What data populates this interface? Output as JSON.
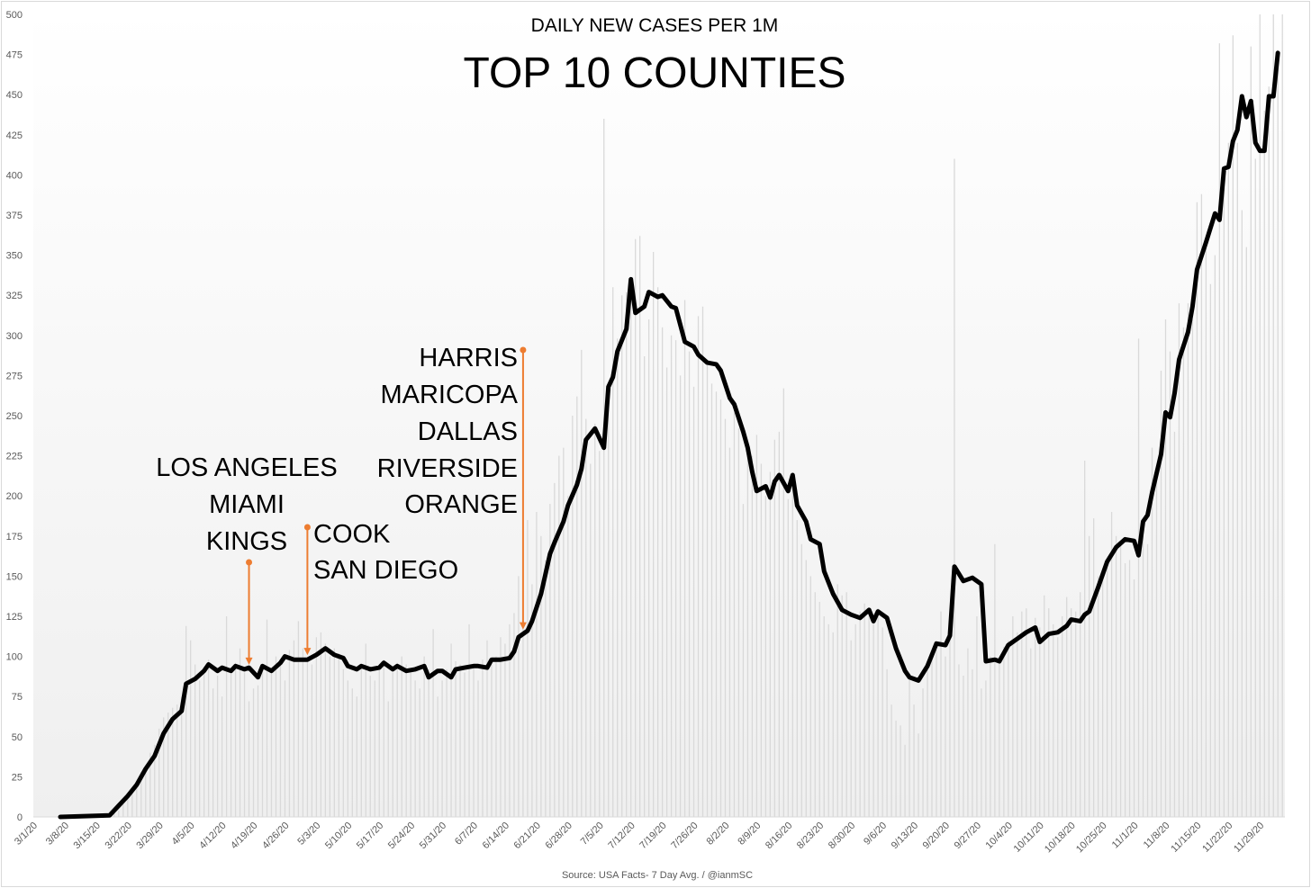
{
  "chart_data": {
    "type": "bar+line",
    "subtitle": "DAILY NEW CASES PER 1M",
    "title": "TOP 10 COUNTIES",
    "source": "Source: USA Facts- 7 Day Avg. / @ianmSC",
    "xlabel": "",
    "ylabel": "",
    "x_origin": "3/1/20",
    "x_units": "days since 3/1/20",
    "xlim_days": [
      0,
      279
    ],
    "ylim": [
      0,
      500
    ],
    "y_ticks": [
      0,
      25,
      50,
      75,
      100,
      125,
      150,
      175,
      200,
      225,
      250,
      275,
      300,
      325,
      350,
      375,
      400,
      425,
      450,
      475,
      500
    ],
    "x_tick_labels": [
      "3/1/20",
      "3/8/20",
      "3/15/20",
      "3/22/20",
      "3/29/20",
      "4/5/20",
      "4/12/20",
      "4/19/20",
      "4/26/20",
      "5/3/20",
      "5/10/20",
      "5/17/20",
      "5/24/20",
      "5/31/20",
      "6/7/20",
      "6/14/20",
      "6/21/20",
      "6/28/20",
      "7/5/20",
      "7/12/20",
      "7/19/20",
      "7/26/20",
      "8/2/20",
      "8/9/20",
      "8/16/20",
      "8/23/20",
      "8/30/20",
      "9/6/20",
      "9/13/20",
      "9/20/20",
      "9/27/20",
      "10/4/20",
      "10/11/20",
      "10/18/20",
      "10/25/20",
      "11/1/20",
      "11/8/20",
      "11/15/20",
      "11/22/20",
      "11/29/20"
    ],
    "grid": false,
    "legend": "none",
    "bars": {
      "name": "Daily new cases per 1M",
      "color": "#d9d9d9",
      "start_day": 5,
      "values": [
        0,
        0,
        0,
        0,
        0,
        1,
        1,
        1,
        1,
        1,
        2,
        2,
        3,
        4,
        8,
        12,
        15,
        20,
        28,
        30,
        40,
        45,
        55,
        62,
        65,
        68,
        70,
        75,
        119,
        110,
        95,
        85,
        92,
        98,
        80,
        88,
        75,
        125,
        92,
        96,
        105,
        90,
        72,
        80,
        82,
        95,
        123,
        90,
        100,
        98,
        85,
        104,
        110,
        122,
        105,
        98,
        95,
        112,
        115,
        108,
        100,
        105,
        102,
        92,
        85,
        80,
        75,
        95,
        108,
        88,
        85,
        92,
        98,
        72,
        90,
        96,
        100,
        95,
        90,
        85,
        80,
        100,
        92,
        117,
        75,
        85,
        92,
        108,
        97,
        95,
        90,
        120,
        94,
        85,
        98,
        110,
        95,
        100,
        112,
        108,
        120,
        127,
        150,
        168,
        185,
        145,
        190,
        175,
        160,
        195,
        208,
        225,
        230,
        200,
        250,
        262,
        291,
        248,
        220,
        245,
        228,
        435,
        262,
        330,
        298,
        325,
        327,
        335,
        360,
        362,
        287,
        310,
        352,
        330,
        305,
        280,
        300,
        297,
        275,
        322,
        290,
        268,
        312,
        318,
        282,
        270,
        265,
        260,
        248,
        230,
        252,
        242,
        195,
        234,
        225,
        238,
        220,
        200,
        215,
        235,
        240,
        267,
        198,
        205,
        185,
        170,
        160,
        150,
        140,
        134,
        125,
        120,
        115,
        145,
        138,
        140,
        110,
        120,
        128,
        133,
        130,
        126,
        130,
        118,
        92,
        70,
        60,
        57,
        45,
        88,
        70,
        52,
        80,
        92,
        100,
        104,
        128,
        100,
        120,
        410,
        95,
        88,
        105,
        92,
        125,
        80,
        85,
        100,
        170,
        98,
        106,
        110,
        125,
        115,
        128,
        130,
        105,
        124,
        118,
        138,
        130,
        120,
        112,
        125,
        137,
        130,
        128,
        140,
        222,
        175,
        186,
        150,
        155,
        160,
        190,
        175,
        170,
        158,
        160,
        148,
        298,
        175,
        170,
        230,
        210,
        278,
        310,
        290,
        240,
        320,
        305,
        320,
        310,
        383,
        388,
        360,
        332,
        350,
        482,
        400,
        420,
        487,
        420,
        378,
        355,
        480,
        410,
        500,
        440,
        455,
        500,
        470,
        500
      ]
    },
    "line": {
      "name": "7 Day Avg.",
      "color": "#000000",
      "points": [
        [
          5,
          0
        ],
        [
          16,
          1
        ],
        [
          18,
          7
        ],
        [
          20,
          13
        ],
        [
          22,
          20
        ],
        [
          24,
          30
        ],
        [
          26,
          38
        ],
        [
          28,
          52
        ],
        [
          30,
          61
        ],
        [
          32,
          66
        ],
        [
          33,
          83
        ],
        [
          35,
          86
        ],
        [
          37,
          91
        ],
        [
          38,
          95
        ],
        [
          40,
          91
        ],
        [
          41,
          93
        ],
        [
          43,
          91
        ],
        [
          44,
          94
        ],
        [
          46,
          92
        ],
        [
          47,
          93
        ],
        [
          49,
          87
        ],
        [
          50,
          94
        ],
        [
          52,
          91
        ],
        [
          54,
          96
        ],
        [
          55,
          100
        ],
        [
          57,
          98
        ],
        [
          58,
          98
        ],
        [
          60,
          98
        ],
        [
          62,
          101
        ],
        [
          64,
          105
        ],
        [
          66,
          101
        ],
        [
          68,
          99
        ],
        [
          69,
          94
        ],
        [
          71,
          92
        ],
        [
          72,
          94
        ],
        [
          74,
          92
        ],
        [
          76,
          93
        ],
        [
          77,
          96
        ],
        [
          79,
          92
        ],
        [
          80,
          94
        ],
        [
          82,
          91
        ],
        [
          84,
          92
        ],
        [
          86,
          94
        ],
        [
          87,
          87
        ],
        [
          89,
          91
        ],
        [
          90,
          91
        ],
        [
          92,
          87
        ],
        [
          93,
          92
        ],
        [
          95,
          93
        ],
        [
          97,
          94
        ],
        [
          98,
          94
        ],
        [
          100,
          93
        ],
        [
          101,
          98
        ],
        [
          103,
          98
        ],
        [
          105,
          99
        ],
        [
          106,
          103
        ],
        [
          107,
          112
        ],
        [
          109,
          116
        ],
        [
          110,
          122
        ],
        [
          112,
          139
        ],
        [
          114,
          164
        ],
        [
          115,
          171
        ],
        [
          117,
          184
        ],
        [
          118,
          194
        ],
        [
          120,
          207
        ],
        [
          121,
          217
        ],
        [
          122,
          235
        ],
        [
          124,
          242
        ],
        [
          126,
          230
        ],
        [
          127,
          268
        ],
        [
          128,
          274
        ],
        [
          129,
          290
        ],
        [
          131,
          304
        ],
        [
          132,
          335
        ],
        [
          133,
          314
        ],
        [
          135,
          318
        ],
        [
          136,
          327
        ],
        [
          138,
          324
        ],
        [
          139,
          325
        ],
        [
          141,
          318
        ],
        [
          142,
          317
        ],
        [
          144,
          296
        ],
        [
          146,
          293
        ],
        [
          147,
          288
        ],
        [
          149,
          283
        ],
        [
          151,
          282
        ],
        [
          152,
          278
        ],
        [
          154,
          261
        ],
        [
          155,
          257
        ],
        [
          157,
          240
        ],
        [
          158,
          230
        ],
        [
          159,
          215
        ],
        [
          160,
          203
        ],
        [
          162,
          206
        ],
        [
          163,
          199
        ],
        [
          164,
          209
        ],
        [
          165,
          213
        ],
        [
          167,
          203
        ],
        [
          168,
          213
        ],
        [
          169,
          194
        ],
        [
          171,
          184
        ],
        [
          172,
          173
        ],
        [
          174,
          170
        ],
        [
          175,
          153
        ],
        [
          177,
          139
        ],
        [
          179,
          129
        ],
        [
          181,
          126
        ],
        [
          183,
          124
        ],
        [
          185,
          129
        ],
        [
          186,
          122
        ],
        [
          187,
          128
        ],
        [
          189,
          124
        ],
        [
          191,
          105
        ],
        [
          193,
          91
        ],
        [
          194,
          87
        ],
        [
          196,
          85
        ],
        [
          198,
          94
        ],
        [
          200,
          108
        ],
        [
          202,
          107
        ],
        [
          203,
          113
        ],
        [
          204,
          156
        ],
        [
          206,
          147
        ],
        [
          208,
          149
        ],
        [
          210,
          145
        ],
        [
          211,
          97
        ],
        [
          213,
          98
        ],
        [
          214,
          97
        ],
        [
          216,
          107
        ],
        [
          218,
          111
        ],
        [
          220,
          115
        ],
        [
          222,
          118
        ],
        [
          223,
          109
        ],
        [
          225,
          114
        ],
        [
          227,
          115
        ],
        [
          229,
          119
        ],
        [
          230,
          123
        ],
        [
          232,
          122
        ],
        [
          233,
          126
        ],
        [
          234,
          128
        ],
        [
          236,
          143
        ],
        [
          238,
          159
        ],
        [
          240,
          168
        ],
        [
          242,
          173
        ],
        [
          244,
          172
        ],
        [
          245,
          163
        ],
        [
          246,
          184
        ],
        [
          247,
          188
        ],
        [
          248,
          202
        ],
        [
          250,
          226
        ],
        [
          251,
          252
        ],
        [
          252,
          249
        ],
        [
          253,
          264
        ],
        [
          254,
          285
        ],
        [
          256,
          302
        ],
        [
          257,
          318
        ],
        [
          258,
          341
        ],
        [
          260,
          358
        ],
        [
          262,
          376
        ],
        [
          263,
          372
        ],
        [
          264,
          404
        ],
        [
          265,
          405
        ],
        [
          266,
          421
        ],
        [
          267,
          428
        ],
        [
          268,
          449
        ],
        [
          269,
          436
        ],
        [
          270,
          446
        ],
        [
          271,
          420
        ],
        [
          272,
          415
        ],
        [
          273,
          415
        ],
        [
          274,
          449
        ],
        [
          275,
          449
        ],
        [
          276,
          476
        ]
      ]
    },
    "annotations": [
      {
        "id": "la-group",
        "labels": [
          "LOS ANGELES",
          "MIAMI",
          "KINGS"
        ],
        "arrow_day": 47,
        "arrow_value": 92,
        "color": "#ed7d31"
      },
      {
        "id": "cook-group",
        "labels": [
          "COOK",
          "SAN DIEGO"
        ],
        "arrow_day": 60,
        "arrow_value": 98,
        "color": "#ed7d31"
      },
      {
        "id": "harris-group",
        "labels": [
          "HARRIS",
          "MARICOPA",
          "DALLAS",
          "RIVERSIDE",
          "ORANGE"
        ],
        "arrow_day": 108,
        "arrow_value": 114,
        "color": "#ed7d31"
      }
    ]
  }
}
